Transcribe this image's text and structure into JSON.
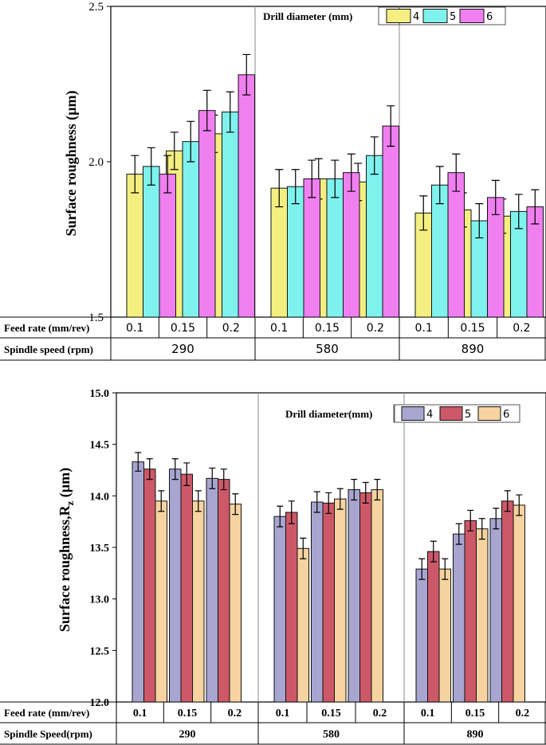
{
  "chart_data": [
    {
      "type": "bar",
      "title": "",
      "ylabel": "Surface roughness (µm)",
      "ylim": [
        1.5,
        2.5
      ],
      "yticks": [
        "1.5",
        "2.0",
        "2.5"
      ],
      "legend_title": "Drill diameter (mm)",
      "legend_position": "top-right",
      "series": [
        {
          "name": "4",
          "color": "#f4ef80",
          "values": [
            1.96,
            2.035,
            2.09,
            1.915,
            1.945,
            1.935,
            1.835,
            1.845,
            1.825
          ],
          "errors": [
            0.06,
            0.06,
            0.06,
            0.06,
            0.065,
            0.06,
            0.055,
            0.055,
            0.055
          ]
        },
        {
          "name": "5",
          "color": "#7ff2ee",
          "values": [
            1.985,
            2.065,
            2.16,
            1.92,
            1.945,
            2.02,
            1.925,
            1.81,
            1.84
          ],
          "errors": [
            0.06,
            0.065,
            0.065,
            0.055,
            0.06,
            0.06,
            0.06,
            0.055,
            0.055
          ]
        },
        {
          "name": "6",
          "color": "#f07ff0",
          "values": [
            1.96,
            2.165,
            2.28,
            1.945,
            1.965,
            2.115,
            1.965,
            1.885,
            1.855
          ],
          "errors": [
            0.06,
            0.065,
            0.065,
            0.06,
            0.06,
            0.065,
            0.06,
            0.055,
            0.055
          ]
        }
      ],
      "feed_rate_label": "Feed rate (mm/rev)",
      "spindle_speed_label": "Spindle speed (rpm)",
      "feed_rates": [
        "0.1",
        "0.15",
        "0.2",
        "0.1",
        "0.15",
        "0.2",
        "0.1",
        "0.15",
        "0.2"
      ],
      "spindle_speeds": [
        "290",
        "580",
        "890"
      ]
    },
    {
      "type": "bar",
      "title": "",
      "ylabel": "Surface roughness,R",
      "ylabel_sub": "z",
      "ylabel_unit": " (µm)",
      "ylim": [
        12.0,
        15.0
      ],
      "yticks": [
        "12.0",
        "12.5",
        "13.0",
        "13.5",
        "14.0",
        "14.5",
        "15.0"
      ],
      "legend_title": "Drill diameter(mm)",
      "legend_position": "top-right",
      "series": [
        {
          "name": "4",
          "color": "#a8a5d0",
          "values": [
            14.33,
            14.26,
            14.17,
            13.8,
            13.94,
            14.06,
            13.29,
            13.63,
            13.78
          ],
          "errors": [
            0.09,
            0.1,
            0.1,
            0.1,
            0.1,
            0.1,
            0.1,
            0.1,
            0.1
          ]
        },
        {
          "name": "5",
          "color": "#cc5868",
          "values": [
            14.26,
            14.21,
            14.16,
            13.84,
            13.93,
            14.03,
            13.46,
            13.76,
            13.95
          ],
          "errors": [
            0.1,
            0.11,
            0.1,
            0.11,
            0.1,
            0.1,
            0.1,
            0.1,
            0.1
          ]
        },
        {
          "name": "6",
          "color": "#f6d3a0",
          "values": [
            13.95,
            13.95,
            13.92,
            13.49,
            13.97,
            14.06,
            13.29,
            13.68,
            13.91
          ],
          "errors": [
            0.1,
            0.1,
            0.1,
            0.1,
            0.1,
            0.1,
            0.1,
            0.1,
            0.1
          ]
        }
      ],
      "feed_rate_label": "Feed rate (mm/rev)",
      "spindle_speed_label": "Spindle Speed(rpm)",
      "feed_rates": [
        "0.1",
        "0.15",
        "0.2",
        "0.1",
        "0.15",
        "0.2",
        "0.1",
        "0.15",
        "0.2"
      ],
      "spindle_speeds": [
        "290",
        "580",
        "890"
      ]
    }
  ]
}
